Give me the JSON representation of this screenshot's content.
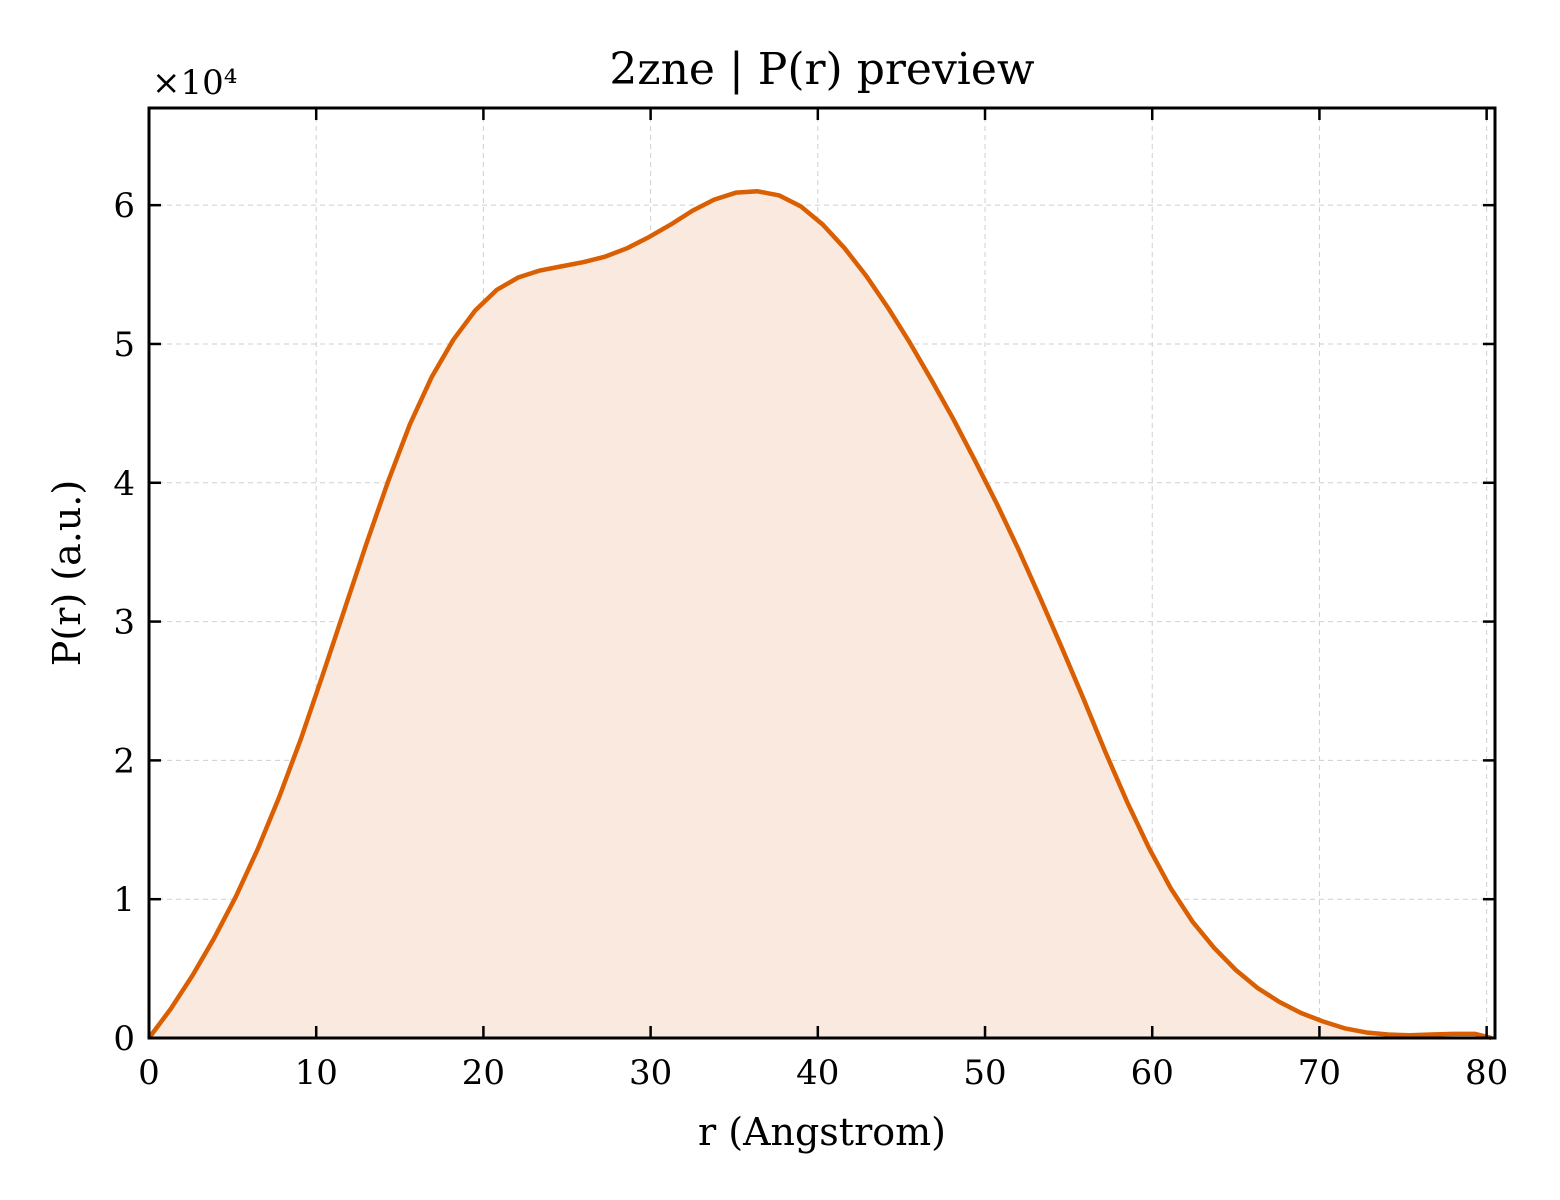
{
  "chart_data": {
    "type": "area",
    "title": "2zne | P(r) preview",
    "xlabel": "r (Angstrom)",
    "ylabel": "P(r) (a.u.)",
    "y_offset_label": "×10⁴",
    "y_multiplier": 10000,
    "xlim": [
      0,
      80.5
    ],
    "ylim": [
      0,
      67000
    ],
    "x_ticks": [
      0,
      10,
      20,
      30,
      40,
      50,
      60,
      70,
      80
    ],
    "y_ticks": [
      0,
      10000,
      20000,
      30000,
      40000,
      50000,
      60000
    ],
    "y_tick_labels": [
      "0",
      "1",
      "2",
      "3",
      "4",
      "5",
      "6"
    ],
    "x_tick_labels": [
      "0",
      "10",
      "20",
      "30",
      "40",
      "50",
      "60",
      "70",
      "80"
    ],
    "grid": true,
    "line_color": "#d95f02",
    "fill_color": "#f9e9df",
    "series": [
      {
        "x": [
          0,
          1.3,
          2.6,
          3.9,
          5.2,
          6.5,
          7.8,
          9.1,
          10.4,
          11.7,
          13.0,
          14.3,
          15.6,
          16.9,
          18.2,
          19.5,
          20.8,
          22.1,
          23.4,
          24.7,
          26.0,
          27.3,
          28.6,
          29.9,
          31.2,
          32.5,
          33.8,
          35.1,
          36.4,
          37.7,
          39.0,
          40.3,
          41.6,
          42.9,
          44.2,
          45.5,
          46.8,
          48.1,
          49.4,
          50.7,
          52.0,
          53.3,
          54.6,
          55.9,
          57.2,
          58.5,
          59.8,
          61.1,
          62.4,
          63.7,
          65.0,
          66.3,
          67.6,
          68.9,
          70.2,
          71.5,
          72.8,
          74.1,
          75.4,
          76.7,
          78.0,
          79.3,
          80.3
        ],
        "y": [
          0,
          2100,
          4500,
          7200,
          10200,
          13600,
          17400,
          21600,
          26200,
          30900,
          35600,
          40100,
          44200,
          47600,
          50300,
          52400,
          53900,
          54800,
          55300,
          55600,
          55900,
          56300,
          56900,
          57700,
          58600,
          59600,
          60400,
          60900,
          61000,
          60700,
          59900,
          58600,
          56900,
          54900,
          52600,
          50100,
          47400,
          44600,
          41600,
          38500,
          35200,
          31700,
          28100,
          24400,
          20600,
          17000,
          13700,
          10800,
          8400,
          6500,
          4900,
          3600,
          2600,
          1800,
          1200,
          700,
          400,
          250,
          200,
          250,
          300,
          300,
          0
        ]
      }
    ]
  }
}
